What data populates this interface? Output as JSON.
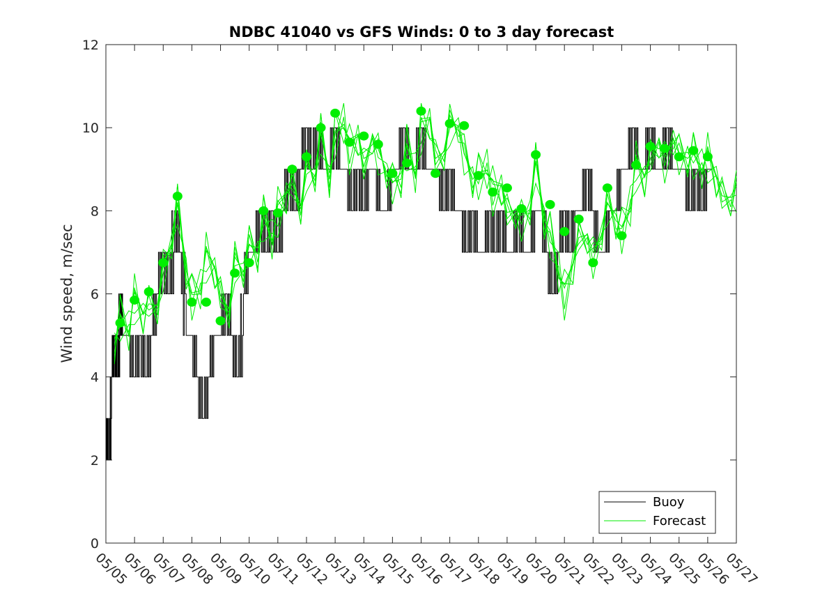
{
  "chart_data": {
    "type": "line",
    "title": "NDBC 41040 vs GFS Winds: 0 to 3 day forecast",
    "xlabel": "",
    "ylabel": "Wind speed, m/sec",
    "x_tick_labels": [
      "05/05",
      "05/06",
      "05/07",
      "05/08",
      "05/09",
      "05/10",
      "05/11",
      "05/12",
      "05/13",
      "05/14",
      "05/15",
      "05/16",
      "05/17",
      "05/18",
      "05/19",
      "05/20",
      "05/21",
      "05/22",
      "05/23",
      "05/24",
      "05/25",
      "05/26",
      "05/27"
    ],
    "y_ticks": [
      0,
      2,
      4,
      6,
      8,
      10,
      12
    ],
    "xlim_days": [
      0,
      22
    ],
    "ylim": [
      0,
      12
    ],
    "grid": false,
    "legend_placement": "bottom-right",
    "series": [
      {
        "name": "Buoy",
        "color": "#000000",
        "style": "step",
        "x": [
          0,
          0.1,
          0.2,
          0.3,
          0.4,
          0.5,
          0.6,
          0.8,
          1.0,
          1.2,
          1.4,
          1.6,
          1.8,
          2.0,
          2.2,
          2.4,
          2.6,
          2.8,
          3.0,
          3.2,
          3.4,
          3.6,
          3.8,
          4.0,
          4.2,
          4.4,
          4.6,
          4.8,
          5.0,
          5.2,
          5.4,
          5.6,
          5.8,
          6.0,
          6.2,
          6.4,
          6.6,
          6.8,
          7.0,
          7.2,
          7.4,
          7.6,
          7.8,
          8.0,
          8.2,
          8.4,
          8.6,
          8.8,
          9.0,
          9.2,
          9.4,
          9.6,
          9.8,
          10.0,
          10.2,
          10.4,
          10.6,
          10.8,
          11.0,
          11.2,
          11.4,
          11.6,
          11.8,
          12.0,
          12.2,
          12.4,
          12.6,
          12.8,
          13.0,
          13.2,
          13.4,
          13.6,
          13.8,
          14.0,
          14.2,
          14.4,
          14.6,
          14.8,
          15.0,
          15.2,
          15.4,
          15.6,
          15.8,
          16.0,
          16.2,
          16.4,
          16.6,
          16.8,
          17.0,
          17.2,
          17.4,
          17.6,
          17.8,
          18.0,
          18.2,
          18.4,
          18.6,
          18.8,
          19.0,
          19.2,
          19.4,
          19.6,
          19.8,
          20.0,
          20.2,
          20.4,
          20.6,
          20.8,
          21.0
        ],
        "values": [
          3,
          2,
          4,
          5,
          4,
          6,
          5,
          5,
          4,
          5,
          4,
          5,
          6,
          7,
          6,
          8,
          7,
          5,
          5,
          4,
          3,
          4,
          5,
          5,
          6,
          5,
          4,
          6,
          7,
          7,
          8,
          7,
          8,
          7,
          8,
          9,
          8,
          9,
          10,
          9,
          10,
          9,
          9,
          10,
          9,
          9,
          8,
          9,
          8,
          9,
          9,
          8,
          8,
          9,
          9,
          10,
          9,
          9,
          10,
          9,
          9,
          9,
          8,
          9,
          8,
          8,
          7,
          8,
          7,
          7,
          8,
          7,
          8,
          7,
          7,
          8,
          7,
          7,
          8,
          8,
          7,
          6,
          7,
          8,
          7,
          8,
          8,
          9,
          8,
          7,
          7,
          8,
          8,
          9,
          9,
          10,
          9,
          9,
          10,
          9,
          9,
          10,
          9,
          9,
          9,
          8,
          9,
          8,
          9
        ]
      },
      {
        "name": "Forecast",
        "color": "#00ee00",
        "style": "ensemble-lines",
        "x": [
          0.3,
          0.5,
          0.8,
          1.0,
          1.3,
          1.5,
          1.8,
          2.0,
          2.3,
          2.5,
          2.8,
          3.0,
          3.3,
          3.5,
          3.8,
          4.0,
          4.3,
          4.5,
          4.8,
          5.0,
          5.3,
          5.5,
          5.8,
          6.0,
          6.3,
          6.5,
          6.8,
          7.0,
          7.3,
          7.5,
          7.8,
          8.0,
          8.3,
          8.5,
          8.8,
          9.0,
          9.3,
          9.5,
          9.8,
          10.0,
          10.3,
          10.5,
          10.8,
          11.0,
          11.3,
          11.5,
          11.8,
          12.0,
          12.3,
          12.5,
          12.8,
          13.0,
          13.3,
          13.5,
          13.8,
          14.0,
          14.3,
          14.5,
          14.8,
          15.0,
          15.3,
          15.5,
          15.8,
          16.0,
          16.3,
          16.5,
          16.8,
          17.0,
          17.3,
          17.5,
          17.8,
          18.0,
          18.3,
          18.5,
          18.8,
          19.0,
          19.3,
          19.5,
          19.8,
          20.0,
          20.3,
          20.5,
          20.8,
          21.0,
          21.3,
          21.5,
          21.8,
          22.0
        ],
        "values": [
          5.0,
          5.4,
          5.2,
          5.8,
          5.5,
          6.0,
          5.6,
          6.6,
          7.2,
          8.2,
          6.8,
          5.9,
          6.2,
          6.8,
          6.6,
          6.2,
          5.5,
          6.8,
          6.5,
          7.2,
          7.2,
          7.8,
          7.4,
          7.9,
          8.4,
          8.9,
          8.0,
          9.0,
          8.8,
          9.9,
          9.0,
          9.8,
          10.2,
          9.4,
          9.8,
          9.3,
          9.7,
          9.4,
          8.9,
          8.7,
          9.0,
          9.5,
          9.0,
          9.9,
          10.2,
          9.5,
          9.3,
          10.1,
          10.0,
          9.4,
          9.0,
          8.8,
          9.1,
          8.4,
          8.6,
          8.2,
          7.9,
          7.8,
          8.0,
          9.2,
          8.0,
          7.4,
          6.6,
          5.9,
          6.7,
          7.6,
          7.3,
          6.9,
          7.4,
          8.2,
          8.0,
          7.5,
          8.2,
          9.0,
          8.8,
          9.5,
          9.6,
          9.2,
          9.7,
          9.4,
          9.5,
          9.3,
          9.1,
          9.2,
          8.8,
          8.6,
          8.2,
          8.5
        ]
      },
      {
        "name": "",
        "color": "#00ee00",
        "style": "markers",
        "x": [
          0.5,
          1.0,
          1.5,
          2.0,
          2.5,
          3.0,
          3.5,
          4.0,
          4.5,
          5.0,
          5.5,
          6.0,
          6.5,
          7.0,
          7.5,
          8.0,
          8.5,
          9.0,
          9.5,
          10.0,
          10.5,
          11.0,
          11.5,
          12.0,
          12.5,
          13.0,
          13.5,
          14.0,
          14.5,
          15.0,
          15.5,
          16.0,
          16.5,
          17.0,
          17.5,
          18.0,
          18.5,
          19.0,
          19.5,
          20.0,
          20.5,
          21.0
        ],
        "values": [
          5.3,
          5.85,
          6.05,
          6.75,
          8.35,
          5.8,
          5.8,
          5.35,
          6.5,
          6.75,
          8.0,
          7.95,
          9.0,
          9.3,
          10.0,
          10.35,
          9.65,
          9.8,
          9.6,
          8.9,
          9.15,
          10.4,
          8.9,
          10.1,
          10.05,
          8.85,
          8.45,
          8.55,
          8.05,
          9.35,
          8.15,
          7.5,
          7.8,
          6.75,
          8.55,
          7.4,
          9.1,
          9.55,
          9.5,
          9.3,
          9.45,
          9.3
        ]
      }
    ],
    "legend": {
      "entries": [
        "Buoy",
        "Forecast"
      ]
    }
  }
}
